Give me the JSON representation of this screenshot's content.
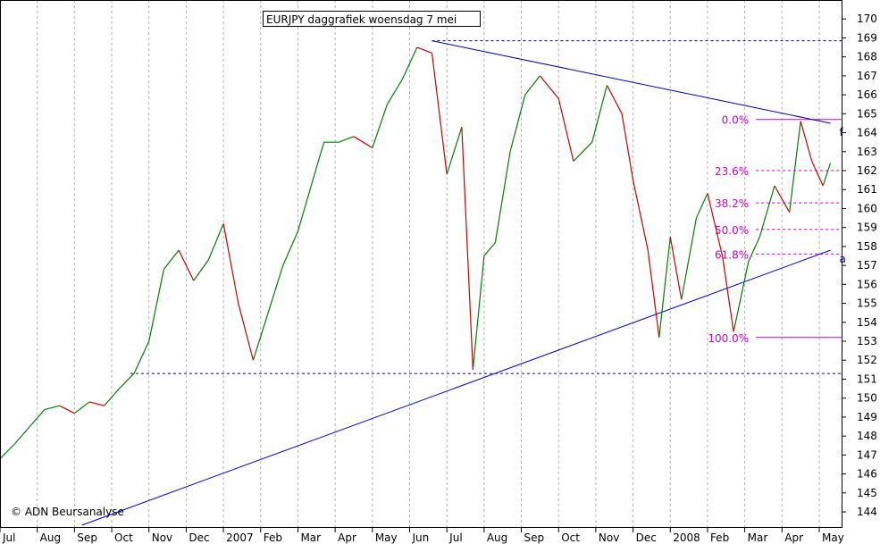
{
  "chart_data": {
    "type": "line",
    "title": "EURJPY daggrafiek woensdag 7 mei",
    "credit": "© ADN Beursanalyse",
    "x_labels": [
      "Jul",
      "Aug",
      "Sep",
      "Oct",
      "Nov",
      "Dec",
      "2007",
      "Feb",
      "Mar",
      "Apr",
      "May",
      "Jun",
      "Jul",
      "Aug",
      "Sep",
      "Oct",
      "Nov",
      "Dec",
      "2008",
      "Feb",
      "Mar",
      "Apr",
      "May"
    ],
    "y_ticks": [
      144,
      145,
      146,
      147,
      148,
      149,
      150,
      151,
      152,
      153,
      154,
      155,
      156,
      157,
      158,
      159,
      160,
      161,
      162,
      163,
      164,
      165,
      166,
      167,
      168,
      169,
      170
    ],
    "ylim": [
      143.2,
      171
    ],
    "xlim": [
      0,
      22.6
    ],
    "grid": true,
    "series": [
      {
        "type": "price",
        "x": [
          0,
          0.4,
          0.8,
          1.2,
          1.6,
          2,
          2.4,
          2.8,
          3.2,
          3.6,
          4,
          4.4,
          4.8,
          5.2,
          5.6,
          6,
          6.4,
          6.8,
          7.2,
          7.6,
          8,
          8.4,
          8.7,
          9.1,
          9.5,
          10,
          10.4,
          10.8,
          11.2,
          11.6,
          12,
          12.4,
          12.7,
          13.0,
          13.3,
          13.7,
          14.1,
          14.5,
          15.0,
          15.4,
          15.9,
          16.3,
          16.7,
          17.0,
          17.4,
          17.7,
          18.0,
          18.3,
          18.7,
          19.0,
          19.4,
          19.7,
          20.1,
          20.4,
          20.8,
          21.2,
          21.5,
          21.8,
          22.1,
          22.3
        ],
        "values": [
          146.8,
          147.6,
          148.5,
          149.4,
          149.6,
          149.2,
          149.8,
          149.6,
          150.5,
          151.3,
          153,
          156.8,
          157.8,
          156.2,
          157.3,
          159.2,
          155,
          152,
          154.5,
          157,
          158.8,
          161.5,
          163.5,
          163.5,
          163.8,
          163.2,
          165.5,
          166.8,
          168.5,
          168.2,
          161.8,
          164.3,
          151.5,
          157.5,
          158.2,
          163,
          166,
          167,
          165.8,
          162.5,
          163.5,
          166.5,
          165,
          161.5,
          157.8,
          153.2,
          158.5,
          155.2,
          159.5,
          160.8,
          157.5,
          153.5,
          157.2,
          158.5,
          161.2,
          159.8,
          164.6,
          162.5,
          161.2,
          162.4
        ],
        "colors": {
          "up": "#008000",
          "down": "#cc0000"
        }
      }
    ],
    "trendlines": [
      {
        "name": "f",
        "x": [
          11.6,
          22.3
        ],
        "y": [
          168.85,
          164.5
        ],
        "color": "#0000aa"
      },
      {
        "name": "a",
        "x": [
          2.2,
          22.3
        ],
        "y": [
          143.3,
          157.8
        ],
        "color": "#0000cc"
      }
    ],
    "horizontal_levels": [
      {
        "x": [
          11.6,
          22.6
        ],
        "y": 168.85,
        "style": "dashed",
        "color": "#000080"
      },
      {
        "x": [
          3.5,
          22.6
        ],
        "y": 151.3,
        "style": "dashed",
        "color": "#000080"
      }
    ],
    "fibonacci": {
      "color": "#cc00cc",
      "start_x": 20.3,
      "end_x": 22.6,
      "levels": [
        {
          "label": "0.0%",
          "value": 164.7
        },
        {
          "label": "23.6%",
          "value": 162.0
        },
        {
          "label": "38.2%",
          "value": 160.3
        },
        {
          "label": "50.0%",
          "value": 158.9
        },
        {
          "label": "61.8%",
          "value": 157.6
        },
        {
          "label": "100.0%",
          "value": 153.2
        }
      ]
    }
  }
}
